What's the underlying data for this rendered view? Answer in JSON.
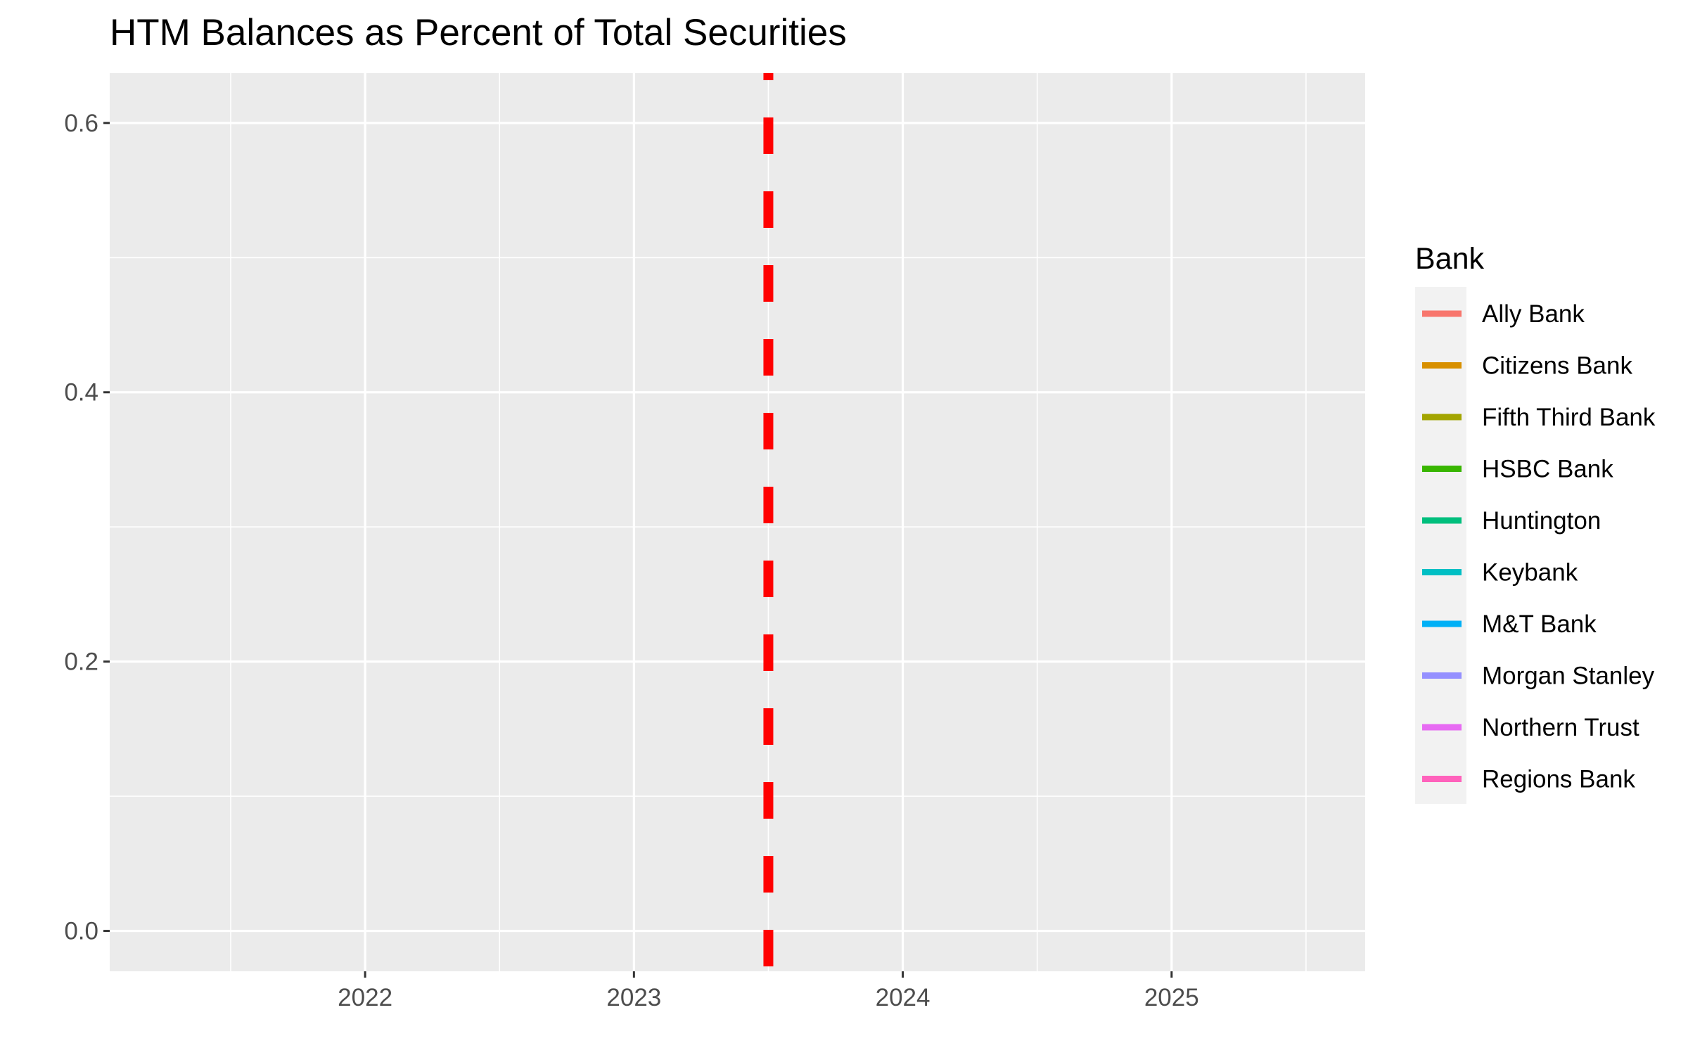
{
  "chart_data": {
    "type": "line",
    "title": "HTM Balances as Percent of Total Securities",
    "xlabel": "",
    "ylabel": "",
    "x_ticks": [
      "2022",
      "2023",
      "2024",
      "2025"
    ],
    "x_tick_values": [
      2022,
      2023,
      2024,
      2025
    ],
    "xlim": [
      2021.05,
      2025.72
    ],
    "y_ticks": [
      "0.0",
      "0.2",
      "0.4",
      "0.6"
    ],
    "y_tick_values": [
      0.0,
      0.2,
      0.4,
      0.6
    ],
    "ylim": [
      -0.03,
      0.637
    ],
    "grid": true,
    "panel_background": "#EBEBEB",
    "reference_line": {
      "orientation": "vertical",
      "x": 2023.5,
      "style": "dashed",
      "color": "#FF0000"
    },
    "legend": {
      "title": "Bank",
      "placement": "right",
      "entries": [
        {
          "label": "Ally Bank",
          "color": "#F8766D"
        },
        {
          "label": "Citizens Bank",
          "color": "#D89000"
        },
        {
          "label": "Fifth Third Bank",
          "color": "#A3A500"
        },
        {
          "label": "HSBC Bank",
          "color": "#39B600"
        },
        {
          "label": "Huntington",
          "color": "#00BF7D"
        },
        {
          "label": "Keybank",
          "color": "#00BFC4"
        },
        {
          "label": "M&T Bank",
          "color": "#00B0F6"
        },
        {
          "label": "Morgan Stanley",
          "color": "#9590FF"
        },
        {
          "label": "Northern Trust",
          "color": "#E76BF3"
        },
        {
          "label": "Regions Bank",
          "color": "#FF62BC"
        }
      ]
    },
    "series": []
  }
}
